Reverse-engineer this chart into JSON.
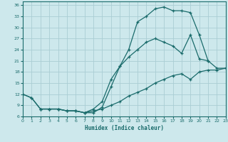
{
  "xlabel": "Humidex (Indice chaleur)",
  "bg_color": "#cde8ec",
  "grid_color": "#aacdd4",
  "line_color": "#1a6b6b",
  "line1_x": [
    0,
    1,
    2,
    3,
    4,
    5,
    6,
    7,
    8,
    9,
    10,
    11,
    12,
    13,
    14,
    15,
    16,
    17,
    18,
    19,
    20,
    21
  ],
  "line1_y": [
    12,
    11,
    8,
    8,
    8,
    7.5,
    7.5,
    7,
    7,
    8.5,
    14,
    19.5,
    24,
    31.5,
    33,
    35,
    35.5,
    34.5,
    34.5,
    34,
    28,
    21
  ],
  "line2_x": [
    0,
    1,
    2,
    3,
    4,
    5,
    6,
    7,
    8,
    9,
    10,
    11,
    12,
    13,
    14,
    15,
    16,
    17,
    18,
    19,
    20,
    21,
    22,
    23
  ],
  "line2_y": [
    12,
    11,
    8,
    8,
    8,
    7.5,
    7.5,
    7,
    8,
    10,
    16,
    19.5,
    22,
    24,
    26,
    27,
    26,
    25,
    23,
    28,
    21.5,
    21,
    19,
    19
  ],
  "line3_x": [
    2,
    3,
    4,
    5,
    6,
    7,
    8,
    9,
    10,
    11,
    12,
    13,
    14,
    15,
    16,
    17,
    18,
    19,
    20,
    21,
    22,
    23
  ],
  "line3_y": [
    8,
    8,
    8,
    7.5,
    7.5,
    7,
    7.5,
    8,
    9,
    10,
    11.5,
    12.5,
    13.5,
    15,
    16,
    17,
    17.5,
    16,
    18,
    18.5,
    18.5,
    19
  ],
  "xlim": [
    0,
    23
  ],
  "ylim": [
    6,
    37
  ],
  "yticks": [
    6,
    9,
    12,
    15,
    18,
    21,
    24,
    27,
    30,
    33,
    36
  ],
  "xticks": [
    0,
    1,
    2,
    3,
    4,
    5,
    6,
    7,
    8,
    9,
    10,
    11,
    12,
    13,
    14,
    15,
    16,
    17,
    18,
    19,
    20,
    21,
    22,
    23
  ]
}
